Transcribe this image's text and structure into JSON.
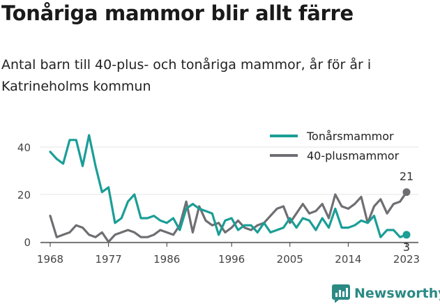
{
  "title": "Tonåriga mammor blir allt färre",
  "subtitle": "Antal barn till 40-plus- och tonåriga mammor, år för år i Katrineholms kommun",
  "brand": {
    "name": "Newsworthy",
    "icon": "newsworthy-logo-icon"
  },
  "chart_data": {
    "type": "line",
    "x": [
      1968,
      1969,
      1970,
      1971,
      1972,
      1973,
      1974,
      1975,
      1976,
      1977,
      1978,
      1979,
      1980,
      1981,
      1982,
      1983,
      1984,
      1985,
      1986,
      1987,
      1988,
      1989,
      1990,
      1991,
      1992,
      1993,
      1994,
      1995,
      1996,
      1997,
      1998,
      1999,
      2000,
      2001,
      2002,
      2003,
      2004,
      2005,
      2006,
      2007,
      2008,
      2009,
      2010,
      2011,
      2012,
      2013,
      2014,
      2015,
      2016,
      2017,
      2018,
      2019,
      2020,
      2021,
      2022,
      2023
    ],
    "xticks": [
      "1968",
      "1977",
      "1986",
      "1996",
      "2005",
      "2014",
      "2023"
    ],
    "yticks": [
      "0",
      "20",
      "40"
    ],
    "ylim": [
      0,
      45
    ],
    "grid": "horizontal",
    "legend_position": "top-right",
    "series": [
      {
        "name": "Tonårsmammor",
        "color": "#1a9e96",
        "values": [
          38,
          35,
          33,
          43,
          43,
          32,
          45,
          32,
          21,
          23,
          8,
          10,
          17,
          20,
          10,
          10,
          11,
          9,
          8,
          10,
          5,
          14,
          16,
          14,
          13,
          12,
          3,
          9,
          10,
          5,
          7,
          7,
          4,
          8,
          4,
          5,
          6,
          10,
          6,
          10,
          9,
          5,
          10,
          6,
          14,
          6,
          6,
          7,
          9,
          8,
          11,
          2,
          5,
          5,
          2,
          3
        ],
        "end_label": "3"
      },
      {
        "name": "40-plusmammor",
        "color": "#6e6e73",
        "values": [
          11,
          2,
          3,
          4,
          7,
          6,
          3,
          2,
          4,
          0,
          3,
          4,
          5,
          4,
          2,
          2,
          3,
          5,
          4,
          3,
          7,
          17,
          4,
          15,
          9,
          7,
          8,
          4,
          6,
          9,
          6,
          5,
          7,
          8,
          11,
          14,
          15,
          8,
          12,
          16,
          12,
          13,
          16,
          10,
          20,
          15,
          14,
          16,
          19,
          8,
          15,
          18,
          12,
          16,
          17,
          21
        ],
        "end_label": "21"
      }
    ]
  }
}
